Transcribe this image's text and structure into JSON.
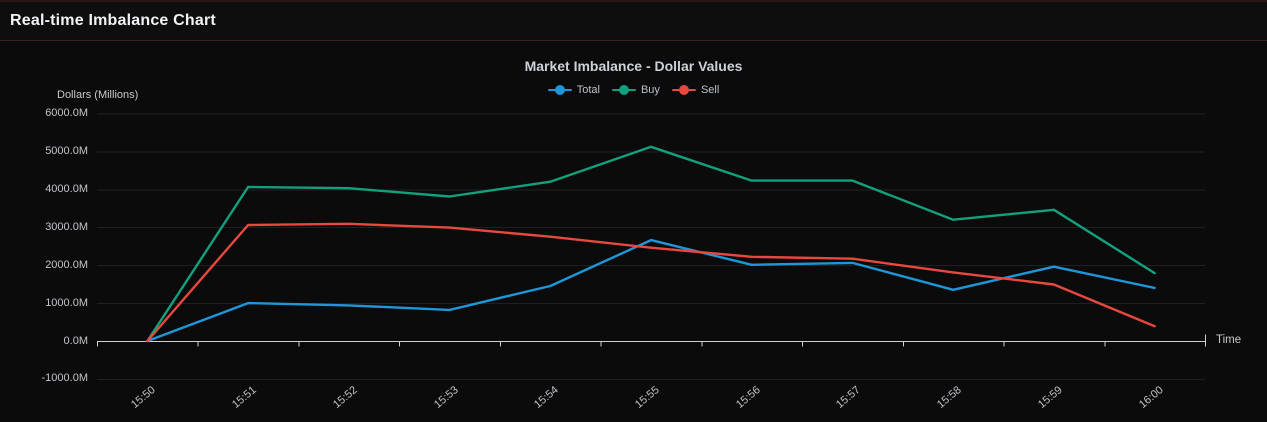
{
  "header": {
    "title": "Real-time Imbalance Chart"
  },
  "chart": {
    "title": "Market Imbalance - Dollar Values",
    "y_axis_name": "Dollars (Millions)",
    "x_axis_name": "Time"
  },
  "chart_data": {
    "type": "line",
    "title": "Market Imbalance - Dollar Values",
    "xlabel": "Time",
    "ylabel": "Dollars (Millions)",
    "legend_position": "top",
    "grid": true,
    "ylim": [
      -1000,
      6000
    ],
    "y_ticks": [
      {
        "label": "6000.0M",
        "value": 6000
      },
      {
        "label": "5000.0M",
        "value": 5000
      },
      {
        "label": "4000.0M",
        "value": 4000
      },
      {
        "label": "3000.0M",
        "value": 3000
      },
      {
        "label": "2000.0M",
        "value": 2000
      },
      {
        "label": "1000.0M",
        "value": 1000
      },
      {
        "label": "0.0M",
        "value": 0
      },
      {
        "label": "-1000.0M",
        "value": -1000
      }
    ],
    "categories": [
      "15:50",
      "15:51",
      "15:52",
      "15:53",
      "15:54",
      "15:55",
      "15:56",
      "15:57",
      "15:58",
      "15:59",
      "16:00"
    ],
    "series": [
      {
        "name": "Total",
        "color": "#1e96d7",
        "values": [
          0,
          1000,
          940,
          820,
          1450,
          2660,
          2010,
          2060,
          1350,
          1960,
          1400
        ]
      },
      {
        "name": "Buy",
        "color": "#13a07c",
        "values": [
          0,
          4060,
          4030,
          3810,
          4200,
          5120,
          4230,
          4230,
          3200,
          3460,
          1790
        ]
      },
      {
        "name": "Sell",
        "color": "#e8483e",
        "values": [
          0,
          3060,
          3090,
          2990,
          2750,
          2460,
          2220,
          2170,
          1810,
          1490,
          390
        ]
      }
    ],
    "axis_colors": {
      "axis_line": "#cfd0d6",
      "grid_line": "#202023"
    }
  }
}
